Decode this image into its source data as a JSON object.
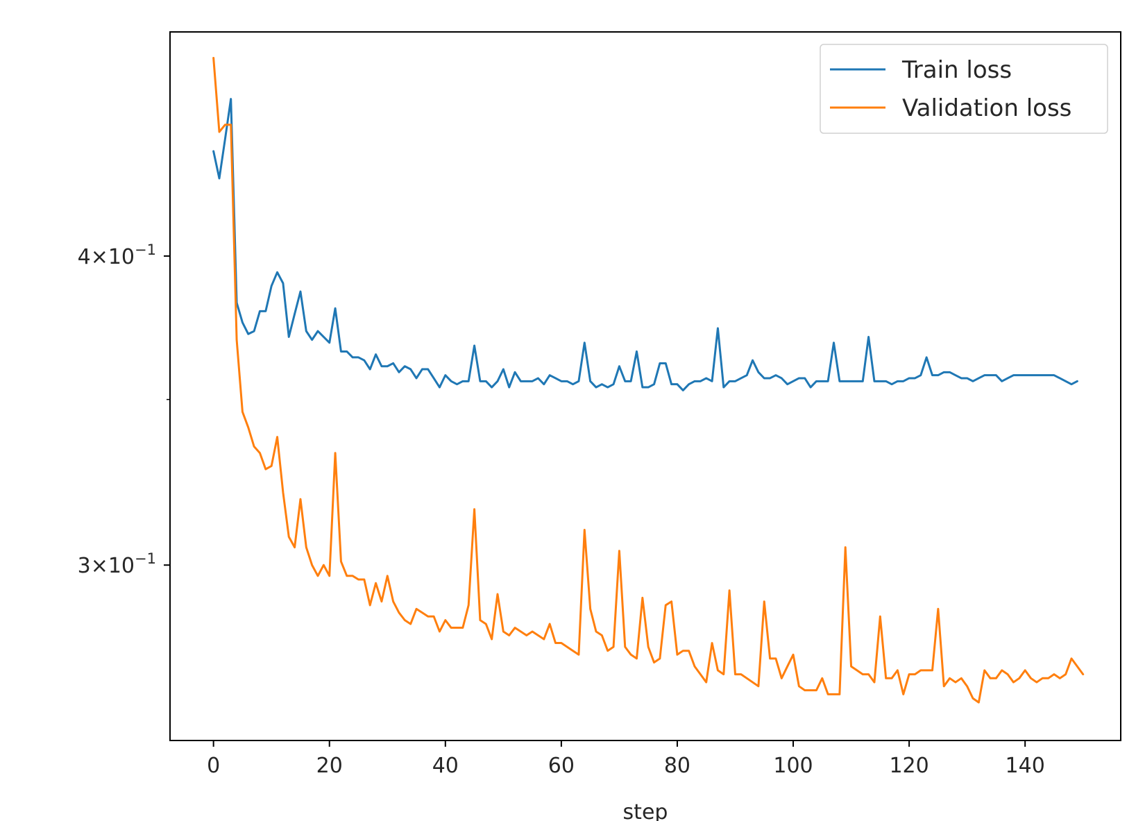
{
  "chart_data": {
    "type": "line",
    "xlabel": "step",
    "ylabel": "",
    "yscale": "log",
    "xlim": [
      -7.5,
      156.5
    ],
    "ylim": [
      0.2548,
      0.4928
    ],
    "xticks": [
      0,
      20,
      40,
      60,
      80,
      100,
      120,
      140
    ],
    "xtick_labels": [
      "0",
      "20",
      "40",
      "60",
      "80",
      "100",
      "120",
      "140"
    ],
    "yticks": [
      {
        "value": 0.4,
        "mantissa": "4",
        "base": "10",
        "exp": "−1"
      },
      {
        "value": 0.3,
        "mantissa": "3",
        "base": "10",
        "exp": "−1"
      }
    ],
    "legend_position": "top-right",
    "grid": false,
    "series": [
      {
        "name": "Train loss",
        "color": "#1f77b4",
        "x_start": 0,
        "x_step": 1,
        "values": [
          0.441,
          0.43,
          0.446,
          0.463,
          0.383,
          0.376,
          0.372,
          0.373,
          0.38,
          0.38,
          0.389,
          0.394,
          0.39,
          0.371,
          0.379,
          0.387,
          0.373,
          0.37,
          0.373,
          0.371,
          0.369,
          0.381,
          0.366,
          0.366,
          0.364,
          0.364,
          0.363,
          0.36,
          0.365,
          0.361,
          0.361,
          0.362,
          0.359,
          0.361,
          0.36,
          0.357,
          0.36,
          0.36,
          0.357,
          0.354,
          0.358,
          0.356,
          0.355,
          0.356,
          0.356,
          0.368,
          0.356,
          0.356,
          0.354,
          0.356,
          0.36,
          0.354,
          0.359,
          0.356,
          0.356,
          0.356,
          0.357,
          0.355,
          0.358,
          0.357,
          0.356,
          0.356,
          0.355,
          0.356,
          0.369,
          0.356,
          0.354,
          0.355,
          0.354,
          0.355,
          0.361,
          0.356,
          0.356,
          0.366,
          0.354,
          0.354,
          0.355,
          0.362,
          0.362,
          0.355,
          0.355,
          0.353,
          0.355,
          0.356,
          0.356,
          0.357,
          0.356,
          0.374,
          0.354,
          0.356,
          0.356,
          0.357,
          0.358,
          0.363,
          0.359,
          0.357,
          0.357,
          0.358,
          0.357,
          0.355,
          0.356,
          0.357,
          0.357,
          0.354,
          0.356,
          0.356,
          0.356,
          0.369,
          0.356,
          0.356,
          0.356,
          0.356,
          0.356,
          0.371,
          0.356,
          0.356,
          0.356,
          0.355,
          0.356,
          0.356,
          0.357,
          0.357,
          0.358,
          0.364,
          0.358,
          0.358,
          0.359,
          0.359,
          0.358,
          0.357,
          0.357,
          0.356,
          0.357,
          0.358,
          0.358,
          0.358,
          0.356,
          0.357,
          0.358,
          0.358,
          0.358,
          0.358,
          0.358,
          0.358,
          0.358,
          0.358,
          0.357,
          0.356,
          0.355,
          0.356
        ]
      },
      {
        "name": "Validation loss",
        "color": "#ff7f0e",
        "x_start": 0,
        "x_step": 1,
        "values": [
          0.481,
          0.449,
          0.452,
          0.452,
          0.37,
          0.346,
          0.341,
          0.335,
          0.333,
          0.328,
          0.329,
          0.338,
          0.321,
          0.308,
          0.305,
          0.319,
          0.305,
          0.3,
          0.297,
          0.3,
          0.297,
          0.333,
          0.301,
          0.297,
          0.297,
          0.296,
          0.296,
          0.289,
          0.295,
          0.29,
          0.297,
          0.29,
          0.287,
          0.285,
          0.284,
          0.288,
          0.287,
          0.286,
          0.286,
          0.282,
          0.285,
          0.283,
          0.283,
          0.283,
          0.289,
          0.316,
          0.285,
          0.284,
          0.28,
          0.292,
          0.282,
          0.281,
          0.283,
          0.282,
          0.281,
          0.282,
          0.281,
          0.28,
          0.284,
          0.279,
          0.279,
          0.278,
          0.277,
          0.276,
          0.31,
          0.288,
          0.282,
          0.281,
          0.277,
          0.278,
          0.304,
          0.278,
          0.276,
          0.275,
          0.291,
          0.278,
          0.274,
          0.275,
          0.289,
          0.29,
          0.276,
          0.277,
          0.277,
          0.273,
          0.271,
          0.269,
          0.279,
          0.272,
          0.271,
          0.293,
          0.271,
          0.271,
          0.27,
          0.269,
          0.268,
          0.29,
          0.275,
          0.275,
          0.27,
          0.273,
          0.276,
          0.268,
          0.267,
          0.267,
          0.267,
          0.27,
          0.266,
          0.266,
          0.266,
          0.305,
          0.273,
          0.272,
          0.271,
          0.271,
          0.269,
          0.286,
          0.27,
          0.27,
          0.272,
          0.266,
          0.271,
          0.271,
          0.272,
          0.272,
          0.272,
          0.288,
          0.268,
          0.27,
          0.269,
          0.27,
          0.268,
          0.265,
          0.264,
          0.272,
          0.27,
          0.27,
          0.272,
          0.271,
          0.269,
          0.27,
          0.272,
          0.27,
          0.269,
          0.27,
          0.27,
          0.271,
          0.27,
          0.271,
          0.275,
          0.273,
          0.271
        ]
      }
    ]
  }
}
